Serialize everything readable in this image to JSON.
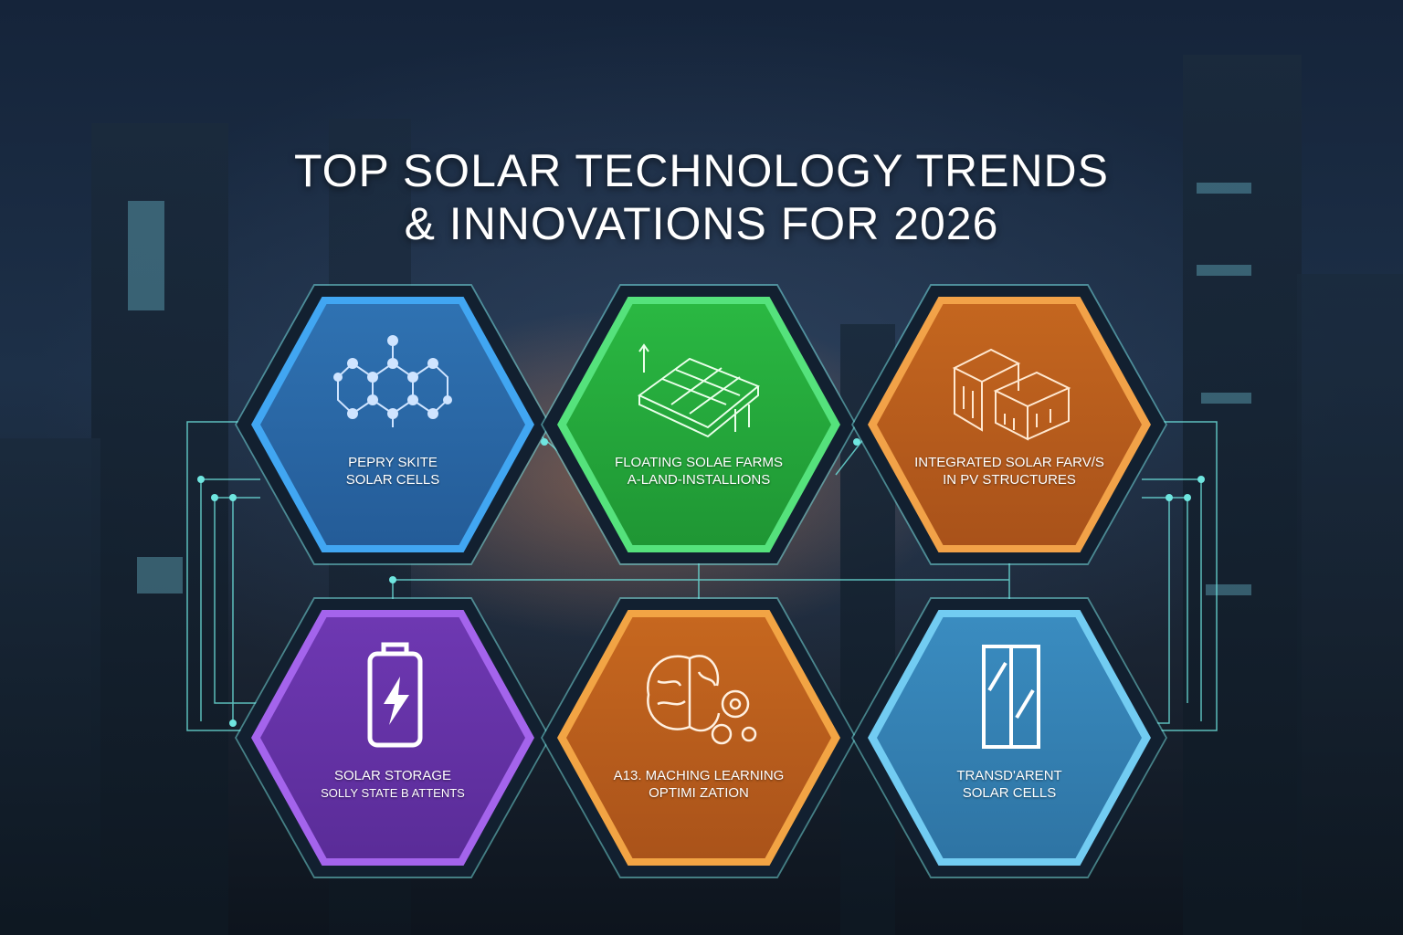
{
  "title": {
    "line1": "TOP SOLAR TECHNOLOGY TRENDS",
    "line2": "& INNOVATIONS FOR 2026"
  },
  "trends": [
    {
      "line1": "PEPRY SKITE",
      "line2": "SOLAR CELLS",
      "icon": "molecule-icon",
      "fill": "#2b68a6",
      "border": "#41a6f2"
    },
    {
      "line1": "FLOATING SOLAE FARMS",
      "line2": "A-LAND-INSTALLIONS",
      "icon": "floating-panels-icon",
      "fill": "#22a23a",
      "border": "#55e27c"
    },
    {
      "line1": "INTEGRATED SOLAR FARV/S",
      "line2": "IN PV STRUCTURES",
      "icon": "building-icon",
      "fill": "#b95c1c",
      "border": "#f2a248"
    },
    {
      "line1": "SOLAR STORAGE",
      "line2": "SOLLY STATE B ATTENTS",
      "icon": "battery-icon",
      "fill": "#6532a4",
      "border": "#a464ec"
    },
    {
      "line1": "A13. MACHING LEARNING",
      "line2": "OPTIMI ZATION",
      "icon": "brain-gears-icon",
      "fill": "#bb5e1c",
      "border": "#f2a444"
    },
    {
      "line1": "TRANSD'ARENT",
      "line2": "SOLAR CELLS",
      "icon": "window-icon",
      "fill": "#3583b6",
      "border": "#72ccf2"
    }
  ],
  "accent": "#6fe6e0"
}
